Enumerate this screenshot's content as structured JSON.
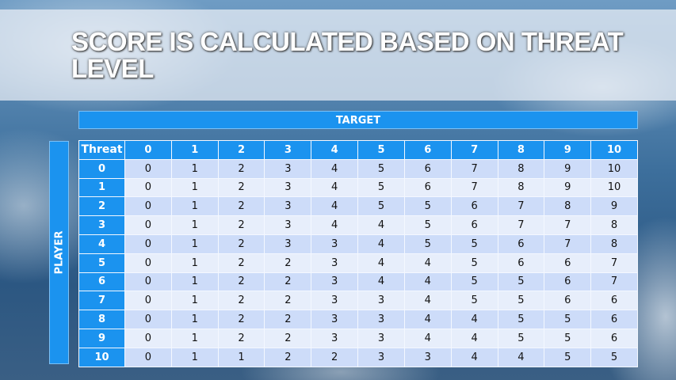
{
  "title": "SCORE IS CALCULATED BASED ON THREAT LEVEL",
  "target_label": "TARGET",
  "player_label": "PLAYER",
  "table": {
    "corner_header": "Threat",
    "columns": [
      "0",
      "1",
      "2",
      "3",
      "4",
      "5",
      "6",
      "7",
      "8",
      "9",
      "10"
    ],
    "rows": [
      {
        "threat": "0",
        "values": [
          "0",
          "1",
          "2",
          "3",
          "4",
          "5",
          "6",
          "7",
          "8",
          "9",
          "10"
        ]
      },
      {
        "threat": "1",
        "values": [
          "0",
          "1",
          "2",
          "3",
          "4",
          "5",
          "6",
          "7",
          "8",
          "9",
          "10"
        ]
      },
      {
        "threat": "2",
        "values": [
          "0",
          "1",
          "2",
          "3",
          "4",
          "5",
          "5",
          "6",
          "7",
          "8",
          "9"
        ]
      },
      {
        "threat": "3",
        "values": [
          "0",
          "1",
          "2",
          "3",
          "4",
          "4",
          "5",
          "6",
          "7",
          "7",
          "8"
        ]
      },
      {
        "threat": "4",
        "values": [
          "0",
          "1",
          "2",
          "3",
          "3",
          "4",
          "5",
          "5",
          "6",
          "7",
          "8"
        ]
      },
      {
        "threat": "5",
        "values": [
          "0",
          "1",
          "2",
          "2",
          "3",
          "4",
          "4",
          "5",
          "6",
          "6",
          "7"
        ]
      },
      {
        "threat": "6",
        "values": [
          "0",
          "1",
          "2",
          "2",
          "3",
          "4",
          "4",
          "5",
          "5",
          "6",
          "7"
        ]
      },
      {
        "threat": "7",
        "values": [
          "0",
          "1",
          "2",
          "2",
          "3",
          "3",
          "4",
          "5",
          "5",
          "6",
          "6"
        ]
      },
      {
        "threat": "8",
        "values": [
          "0",
          "1",
          "2",
          "2",
          "3",
          "3",
          "4",
          "4",
          "5",
          "5",
          "6"
        ]
      },
      {
        "threat": "9",
        "values": [
          "0",
          "1",
          "2",
          "2",
          "3",
          "3",
          "4",
          "4",
          "5",
          "5",
          "6"
        ]
      },
      {
        "threat": "10",
        "values": [
          "0",
          "1",
          "1",
          "2",
          "2",
          "3",
          "3",
          "4",
          "4",
          "5",
          "5"
        ]
      }
    ]
  },
  "colors": {
    "header": "#1b93ef",
    "row_dark": "#cddcf9",
    "row_light": "#e7eefb"
  }
}
